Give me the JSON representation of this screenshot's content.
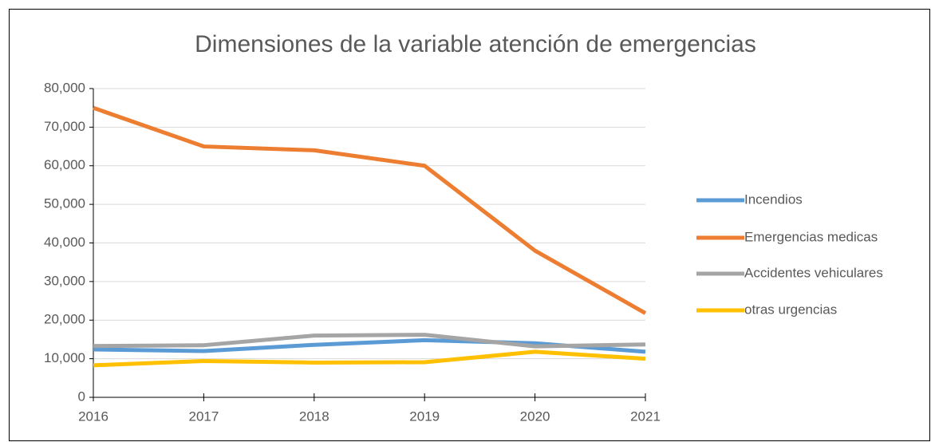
{
  "chart_data": {
    "type": "line",
    "title": "Dimensiones de la variable atención de emergencias",
    "x": [
      2016,
      2017,
      2018,
      2019,
      2020,
      2021
    ],
    "xlim": [
      2016,
      2021
    ],
    "xticks": [
      2016,
      2017,
      2018,
      2019,
      2020,
      2021
    ],
    "ylim": [
      0,
      80000
    ],
    "yticks": [
      0,
      {
        "value": 10000,
        "label": "10,000"
      },
      {
        "value": 20000,
        "label": "20,000"
      },
      {
        "value": 30000,
        "label": "30,000"
      },
      {
        "value": 40000,
        "label": "40,000"
      },
      {
        "value": 50000,
        "label": "50,000"
      },
      {
        "value": 60000,
        "label": "60,000"
      },
      {
        "value": 70000,
        "label": "70,000"
      },
      {
        "value": 80000,
        "label": "80,000"
      }
    ],
    "grid": true,
    "legend": "right",
    "series": [
      {
        "name": "Incendios",
        "color": "#5b9bd5",
        "values": [
          12400,
          12000,
          13600,
          14800,
          14000,
          11800
        ]
      },
      {
        "name": "Emergencias medicas",
        "color": "#ed7d31",
        "values": [
          75000,
          65000,
          64000,
          60000,
          38000,
          21800
        ]
      },
      {
        "name": "Accidentes vehiculares",
        "color": "#a5a5a5",
        "values": [
          13300,
          13500,
          16000,
          16200,
          13200,
          13700
        ]
      },
      {
        "name": "otras urgencias",
        "color": "#ffc000",
        "values": [
          8300,
          9400,
          9000,
          9100,
          11800,
          10000
        ]
      }
    ]
  }
}
